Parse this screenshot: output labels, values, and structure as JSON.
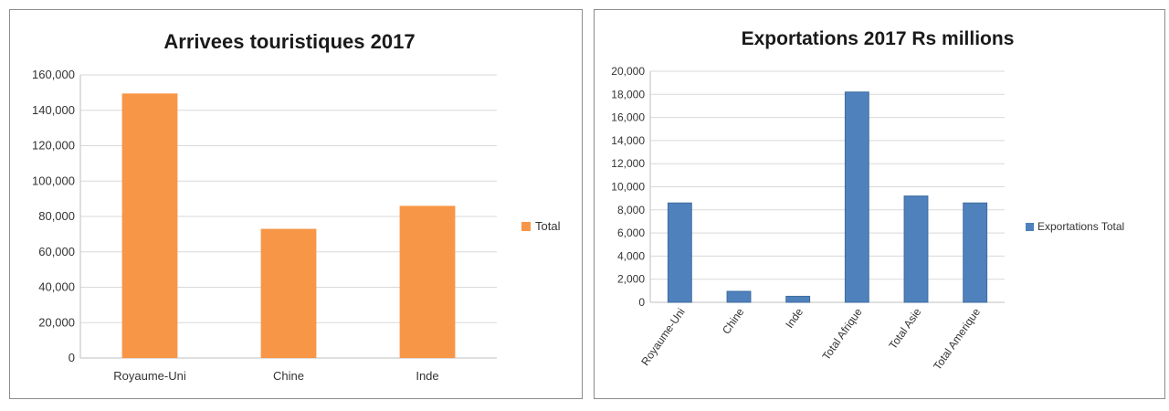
{
  "chart_data": [
    {
      "type": "bar",
      "title": "Arrivees touristiques 2017",
      "categories": [
        "Royaume-Uni",
        "Chine",
        "Inde"
      ],
      "series": [
        {
          "name": "Total",
          "values": [
            149500,
            73000,
            86000
          ]
        }
      ],
      "ylim": [
        0,
        160000
      ],
      "yticks": [
        "0",
        "20,000",
        "40,000",
        "60,000",
        "80,000",
        "100,000",
        "120,000",
        "140,000",
        "160,000"
      ],
      "grid": true,
      "legend": "right",
      "color": "#F79646"
    },
    {
      "type": "bar",
      "title": "Exportations 2017 Rs millions",
      "categories": [
        "Royaume-Uni",
        "Chine",
        "Inde",
        "Total Afrique",
        "Total Asie",
        "Total Amerique"
      ],
      "series": [
        {
          "name": "Exportations Total",
          "values": [
            8600,
            950,
            520,
            18200,
            9200,
            8600
          ]
        }
      ],
      "ylim": [
        0,
        20000
      ],
      "yticks": [
        "0",
        "2,000",
        "4,000",
        "6,000",
        "8,000",
        "10,000",
        "12,000",
        "14,000",
        "16,000",
        "18,000",
        "20,000"
      ],
      "grid": true,
      "legend": "right",
      "color": "#4F81BD"
    }
  ]
}
